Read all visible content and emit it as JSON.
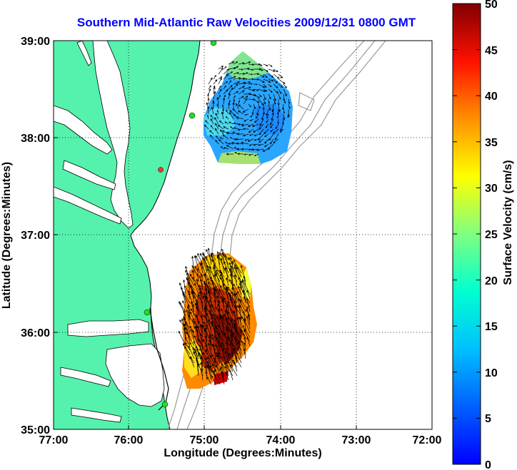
{
  "title": "Southern Mid-Atlantic Raw Velocities 2009/12/31 0800 GMT",
  "axes": {
    "xlabel": "Longitude (Degrees:Minutes)",
    "ylabel": "Latitude (Degrees:Minutes)",
    "xticks": [
      "77:00",
      "76:00",
      "75:00",
      "74:00",
      "73:00",
      "72:00"
    ],
    "yticks": [
      "39:00",
      "38:00",
      "37:00",
      "36:00",
      "35:00"
    ],
    "grid": "dotted"
  },
  "colorbar": {
    "label": "Surface Velocity (cm/s)",
    "ticks": [
      "50",
      "45",
      "40",
      "35",
      "30",
      "25",
      "20",
      "15",
      "10",
      "5",
      "0"
    ],
    "range": [
      0,
      50
    ],
    "colormap": "jet"
  },
  "colors": {
    "title": "#0000ff",
    "land": "#55f2ad",
    "coastline": "#000000",
    "bathymetry": "#9a9a9a",
    "station_active": "#22dd22",
    "station_inactive": "#ff3030"
  }
}
